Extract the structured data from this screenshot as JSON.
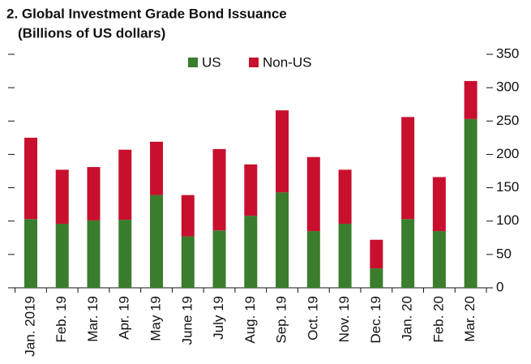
{
  "chart_data": {
    "type": "bar",
    "stacked": true,
    "title": "2. Global Investment Grade Bond Issuance",
    "subtitle": "(Billions of US dollars)",
    "categories": [
      "Jan. 2019",
      "Feb. 19",
      "Mar. 19",
      "Apr. 19",
      "May 19",
      "June 19",
      "July 19",
      "Aug. 19",
      "Sep. 19",
      "Oct. 19",
      "Nov. 19",
      "Dec. 19",
      "Jan. 20",
      "Feb. 20",
      "Mar. 20"
    ],
    "series": [
      {
        "name": "US",
        "color": "#3a7d2c",
        "values": [
          103,
          96,
          101,
          102,
          139,
          77,
          86,
          108,
          143,
          85,
          96,
          29,
          103,
          85,
          253
        ]
      },
      {
        "name": "Non-US",
        "color": "#c8102e",
        "values": [
          122,
          81,
          80,
          105,
          80,
          62,
          122,
          77,
          123,
          111,
          81,
          43,
          153,
          81,
          57
        ]
      }
    ],
    "ylim": [
      0,
      350
    ],
    "yticks": [
      0,
      50,
      100,
      150,
      200,
      250,
      300,
      350
    ],
    "legend": "top"
  }
}
